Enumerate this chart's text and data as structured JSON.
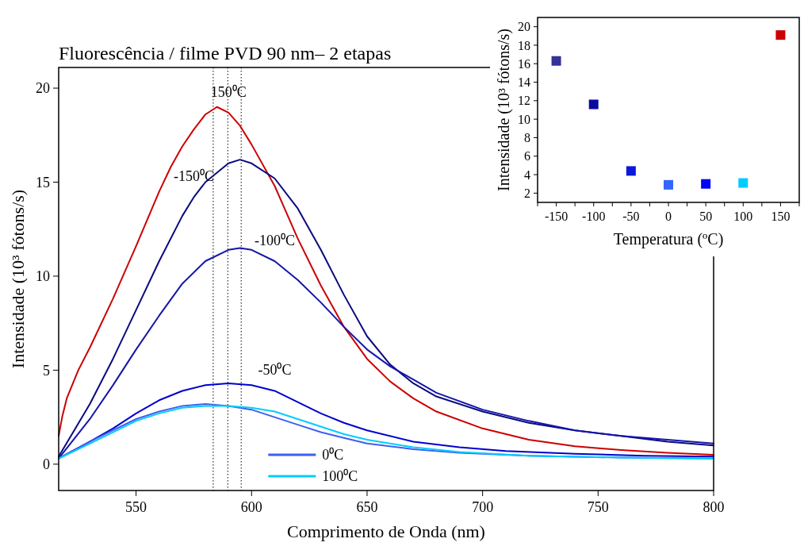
{
  "chart_data": [
    {
      "type": "line",
      "title": "Fluorescência / filme PVD 90 nm– 2 etapas",
      "xlabel": "Comprimento de Onda (nm)",
      "ylabel": "Intensidade (10³ fótons/s)",
      "xlim": [
        516.5,
        800
      ],
      "ylim": [
        -1.4,
        21.1
      ],
      "xticks": [
        550,
        600,
        650,
        700,
        750,
        800
      ],
      "yticks": [
        0,
        5,
        10,
        15,
        20
      ],
      "grid": false,
      "legend": "bottom",
      "line_style": "solid",
      "series": [
        {
          "color": "#cc0000",
          "x": [
            516.5,
            518,
            520,
            525,
            530,
            540,
            550,
            560,
            565,
            570,
            575,
            580,
            585,
            590,
            595,
            600,
            610,
            620,
            630,
            640,
            650,
            660,
            670,
            680,
            700,
            720,
            740,
            760,
            780,
            800
          ],
          "values": [
            1.5,
            2.5,
            3.5,
            5.0,
            6.2,
            8.8,
            11.6,
            14.5,
            15.8,
            16.9,
            17.8,
            18.6,
            19.0,
            18.7,
            18.0,
            17.0,
            14.8,
            12.0,
            9.5,
            7.3,
            5.6,
            4.4,
            3.5,
            2.8,
            1.9,
            1.3,
            0.95,
            0.75,
            0.6,
            0.5
          ]
        },
        {
          "color": "#0a0a80",
          "x": [
            516.5,
            530,
            540,
            550,
            560,
            570,
            575,
            580,
            590,
            595,
            600,
            610,
            620,
            630,
            640,
            650,
            660,
            670,
            680,
            700,
            720,
            740,
            760,
            780,
            800
          ],
          "values": [
            0.4,
            3.2,
            5.6,
            8.2,
            10.8,
            13.2,
            14.2,
            15.0,
            16.0,
            16.2,
            16.0,
            15.2,
            13.6,
            11.4,
            9.0,
            6.8,
            5.3,
            4.3,
            3.6,
            2.8,
            2.2,
            1.8,
            1.5,
            1.2,
            1.0
          ]
        },
        {
          "color": "#1515aa",
          "x": [
            516.5,
            530,
            540,
            550,
            560,
            570,
            580,
            590,
            595,
            600,
            610,
            620,
            630,
            640,
            650,
            660,
            670,
            680,
            700,
            720,
            740,
            760,
            780,
            800
          ],
          "values": [
            0.3,
            2.4,
            4.2,
            6.1,
            7.9,
            9.6,
            10.8,
            11.4,
            11.5,
            11.4,
            10.8,
            9.8,
            8.6,
            7.3,
            6.1,
            5.2,
            4.5,
            3.8,
            2.9,
            2.3,
            1.8,
            1.5,
            1.3,
            1.1
          ]
        },
        {
          "color": "#0000d0",
          "x": [
            516.5,
            530,
            540,
            550,
            560,
            570,
            580,
            590,
            600,
            610,
            620,
            630,
            640,
            650,
            670,
            690,
            710,
            740,
            770,
            800
          ],
          "values": [
            0.3,
            1.2,
            1.9,
            2.7,
            3.4,
            3.9,
            4.2,
            4.3,
            4.2,
            3.9,
            3.3,
            2.7,
            2.2,
            1.8,
            1.2,
            0.9,
            0.7,
            0.55,
            0.45,
            0.4
          ]
        },
        {
          "name": "0⁰C",
          "color": "#3d5ff0",
          "x": [
            516.5,
            530,
            540,
            550,
            560,
            570,
            580,
            590,
            600,
            610,
            620,
            630,
            640,
            650,
            670,
            690,
            720,
            760,
            800
          ],
          "values": [
            0.3,
            1.2,
            1.8,
            2.4,
            2.8,
            3.1,
            3.2,
            3.1,
            2.9,
            2.5,
            2.1,
            1.7,
            1.4,
            1.1,
            0.8,
            0.6,
            0.45,
            0.35,
            0.3
          ]
        },
        {
          "name": "100⁰C",
          "color": "#00ccff",
          "x": [
            516.5,
            530,
            540,
            550,
            560,
            570,
            580,
            590,
            600,
            610,
            620,
            630,
            640,
            650,
            670,
            690,
            720,
            760,
            800
          ],
          "values": [
            0.3,
            1.1,
            1.7,
            2.3,
            2.7,
            3.0,
            3.1,
            3.1,
            3.0,
            2.8,
            2.4,
            2.0,
            1.6,
            1.3,
            0.9,
            0.65,
            0.45,
            0.35,
            0.3
          ]
        }
      ],
      "ref_lines": [
        {
          "axis": "x",
          "value": 583.4,
          "line_style": "dotted",
          "color": "#000000"
        },
        {
          "axis": "x",
          "value": 589.7,
          "line_style": "dotted",
          "color": "#000000"
        },
        {
          "axis": "x",
          "value": 595.5,
          "line_style": "dotted",
          "color": "#000000"
        }
      ],
      "annotations": [
        {
          "text": "150⁰C",
          "x": 590,
          "y": 18.7
        },
        {
          "text": "-150⁰C",
          "x": 575,
          "y": 14.2
        },
        {
          "text": "-100⁰C",
          "x": 610,
          "y": 10.8
        },
        {
          "text": "-50⁰C",
          "x": 610,
          "y": 3.9
        }
      ]
    },
    {
      "type": "scatter",
      "xlabel": "Temperatura (ºC)",
      "ylabel": "Intensidade (10³ fótons/s)",
      "xlim": [
        -175,
        175
      ],
      "ylim": [
        1,
        21
      ],
      "xticks": [
        {
          "value": -175,
          "label": null
        },
        -150,
        {
          "value": -125,
          "label": null
        },
        -100,
        {
          "value": -75,
          "label": null
        },
        -50,
        {
          "value": -25,
          "label": null
        },
        0,
        {
          "value": 25,
          "label": null
        },
        50,
        {
          "value": 75,
          "label": null
        },
        100,
        {
          "value": 125,
          "label": null
        },
        150,
        {
          "value": 175,
          "label": null
        }
      ],
      "yticks": [
        2,
        4,
        6,
        8,
        10,
        12,
        14,
        16,
        18,
        20
      ],
      "grid": false,
      "legend": false,
      "marker": "square",
      "x": [
        -150,
        -100,
        -50,
        0,
        50,
        100,
        150
      ],
      "values": [
        16.3,
        11.6,
        4.4,
        2.9,
        3.0,
        3.1,
        19.1
      ],
      "colors": [
        "#333399",
        "#0a0aa0",
        "#0a1ad8",
        "#3366ff",
        "#0000ff",
        "#00ccff",
        "#cc0000"
      ]
    }
  ]
}
